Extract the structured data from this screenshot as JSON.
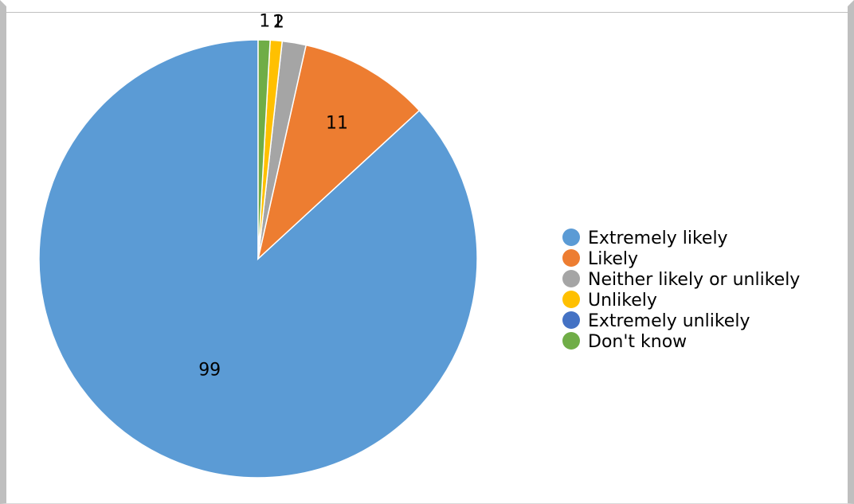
{
  "chart_data": {
    "type": "pie",
    "title": "",
    "categories": [
      "Extremely likely",
      "Likely",
      "Neither likely or unlikely",
      "Unlikely",
      "Extremely unlikely",
      "Don't know"
    ],
    "values": [
      99,
      11,
      2,
      1,
      0,
      1
    ],
    "data_labels": [
      "99",
      "11",
      "2",
      "1",
      "",
      "1"
    ],
    "colors": [
      "#5b9bd5",
      "#ed7d31",
      "#a5a5a5",
      "#ffc000",
      "#4472c4",
      "#70ad47"
    ],
    "start_angle_deg": 0,
    "direction": "counterclockwise",
    "legend_position": "right"
  }
}
